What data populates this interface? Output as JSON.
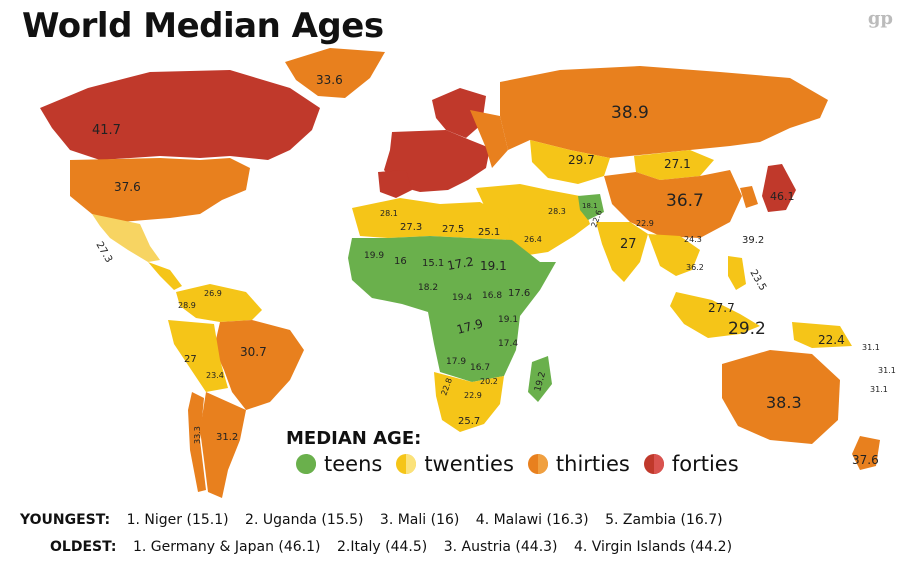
{
  "title": "World Median Ages",
  "logo": "gp",
  "legend": {
    "title": "MEDIAN AGE:",
    "items": [
      {
        "label": "teens",
        "color": "#6ab04c",
        "color2": "#6ab04c"
      },
      {
        "label": "twenties",
        "color": "#f5c518",
        "color2": "#fbe27a"
      },
      {
        "label": "thirties",
        "color": "#e8801e",
        "color2": "#f0a040"
      },
      {
        "label": "forties",
        "color": "#c0392b",
        "color2": "#d9534f"
      }
    ]
  },
  "colors": {
    "teens": "#6ab04c",
    "twenties": "#f5c518",
    "thirties": "#e8801e",
    "forties": "#c0392b"
  },
  "map_labels": {
    "canada": "41.7",
    "greenland": "33.6",
    "usa": "37.6",
    "mexico": "27.3",
    "russia": "38.9",
    "china": "36.7",
    "mongolia": "27.1",
    "kazakhstan": "29.7",
    "japan": "46.1",
    "australia": "38.3",
    "new_zealand": "37.6",
    "indonesia": "29.2",
    "india": "27",
    "brazil": "30.7",
    "argentina": "31.2",
    "chile": "33.3",
    "peru": "27",
    "bolivia": "23.4",
    "colombia": "28.9",
    "venezuela": "26.9",
    "png": "22.4",
    "philippines": "23.5",
    "malaysia": "27.7",
    "algeria": "27.3",
    "libya": "27.5",
    "egypt": "25.1",
    "saudi": "26.4",
    "iran": "28.3",
    "afghanistan": "18.1",
    "pakistan": "22.6",
    "niger": "15.1",
    "chad": "17.2",
    "sudan": "19.1",
    "mali": "16",
    "mauritania": "19.9",
    "nigeria": "18.2",
    "ethiopia": "17.6",
    "car": "19.4",
    "south_sudan": "16.8",
    "kenya": "19.1",
    "congo": "17.9",
    "tanzania": "17.4",
    "angola": "17.9",
    "zambia": "16.7",
    "madagascar": "19.2",
    "namibia": "22.8",
    "botswana": "22.9",
    "south_africa": "25.7",
    "zimbabwe": "20.2",
    "morocco": "28.1",
    "fiji": "31.1",
    "pacific1": "31.1",
    "pacific2": "31.1",
    "korea": "39.2",
    "thailand": "36.2",
    "vietnam": "24.3",
    "myanmar": "22.9"
  },
  "footer": {
    "youngest_label": "YOUNGEST:",
    "youngest": [
      "1. Niger (15.1)",
      "2. Uganda (15.5)",
      "3. Mali (16)",
      "4. Malawi (16.3)",
      "5. Zambia (16.7)"
    ],
    "oldest_label": "OLDEST:",
    "oldest": [
      "1. Germany & Japan (46.1)",
      "2.Italy (44.5)",
      "3. Austria (44.3)",
      "4. Virgin Islands (44.2)"
    ]
  }
}
